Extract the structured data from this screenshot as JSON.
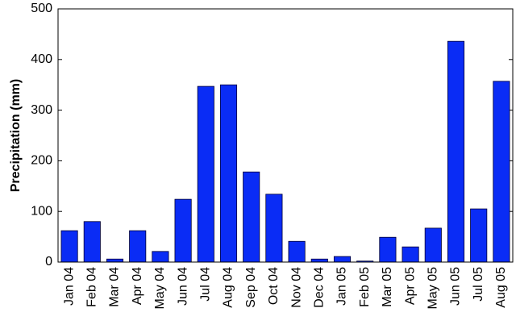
{
  "chart_data": {
    "type": "bar",
    "y_label": "Precipitation (mm)",
    "categories": [
      "Jan 04",
      "Feb 04",
      "Mar 04",
      "Apr 04",
      "May 04",
      "Jun 04",
      "Jul 04",
      "Aug 04",
      "Sep 04",
      "Oct 04",
      "Nov 04",
      "Dec 04",
      "Jan 05",
      "Feb 05",
      "Mar 05",
      "Apr 05",
      "May 05",
      "Jun 05",
      "Jul 05",
      "Aug 05"
    ],
    "values": [
      62,
      80,
      6,
      62,
      21,
      124,
      347,
      350,
      178,
      134,
      41,
      6,
      11,
      2,
      49,
      30,
      67,
      436,
      105,
      357
    ],
    "color": "#0a2cf5",
    "ylim": [
      0,
      500
    ],
    "yticks": [
      0,
      100,
      200,
      300,
      400,
      500
    ],
    "grid": false
  }
}
